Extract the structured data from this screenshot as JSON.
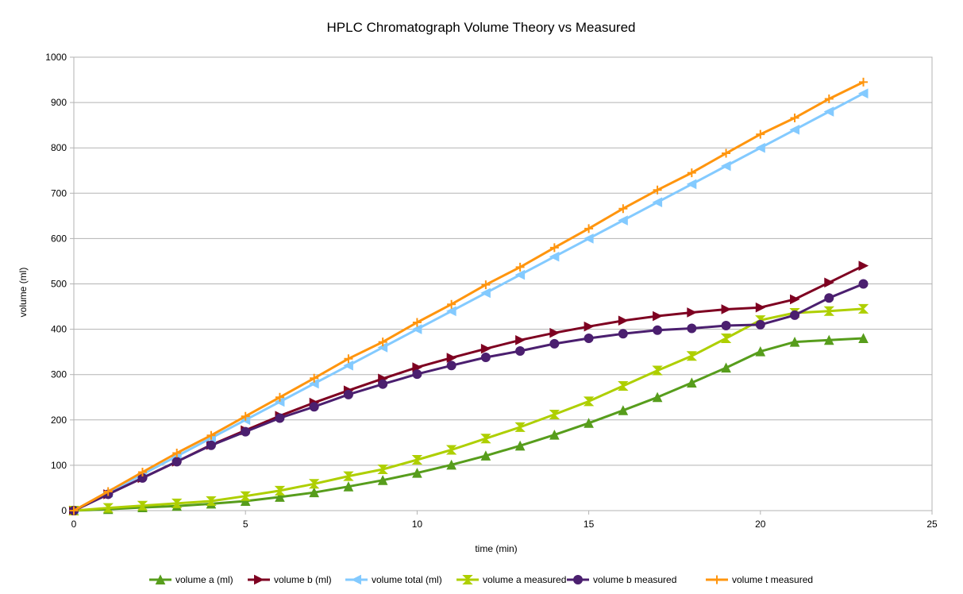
{
  "chart_data": {
    "type": "line",
    "title": "HPLC Chromatograph Volume Theory vs Measured",
    "xlabel": "time (min)",
    "ylabel": "volume (ml)",
    "xlim": [
      0,
      25
    ],
    "ylim": [
      0,
      1000
    ],
    "x_ticks": [
      0,
      5,
      10,
      15,
      20,
      25
    ],
    "y_ticks": [
      0,
      100,
      200,
      300,
      400,
      500,
      600,
      700,
      800,
      900,
      1000
    ],
    "grid": "horizontal",
    "legend_position": "bottom",
    "x": [
      0,
      1,
      2,
      3,
      4,
      5,
      6,
      7,
      8,
      9,
      10,
      11,
      12,
      13,
      14,
      15,
      16,
      17,
      18,
      19,
      20,
      21,
      22,
      23
    ],
    "series": [
      {
        "name": "volume a (ml)",
        "color": "#579d1c",
        "marker": "triangle-up",
        "values": [
          0,
          3,
          7,
          10,
          15,
          21,
          30,
          40,
          53,
          67,
          83,
          101,
          121,
          143,
          167,
          193,
          221,
          250,
          282,
          315,
          351,
          372,
          376,
          380
        ]
      },
      {
        "name": "volume b (ml)",
        "color": "#7e0021",
        "marker": "triangle-right",
        "values": [
          0,
          36,
          72,
          108,
          145,
          177,
          209,
          238,
          265,
          291,
          316,
          337,
          357,
          376,
          392,
          406,
          419,
          429,
          437,
          444,
          448,
          466,
          503,
          540
        ]
      },
      {
        "name": "volume total (ml)",
        "color": "#83caff",
        "marker": "triangle-left",
        "values": [
          0,
          40,
          80,
          120,
          160,
          200,
          240,
          280,
          320,
          360,
          400,
          440,
          480,
          520,
          560,
          600,
          640,
          680,
          720,
          760,
          800,
          840,
          880,
          920
        ]
      },
      {
        "name": "volume a measured",
        "color": "#aecf00",
        "marker": "hourglass",
        "values": [
          0,
          6,
          11,
          16,
          21,
          32,
          44,
          59,
          76,
          91,
          112,
          134,
          159,
          184,
          212,
          241,
          275,
          309,
          341,
          380,
          420,
          436,
          440,
          445
        ]
      },
      {
        "name": "volume b measured",
        "color": "#4b1f6f",
        "marker": "circle",
        "values": [
          0,
          36,
          72,
          108,
          144,
          174,
          204,
          229,
          256,
          279,
          301,
          320,
          338,
          352,
          368,
          380,
          390,
          398,
          402,
          408,
          410,
          431,
          469,
          500
        ]
      },
      {
        "name": "volume t measured",
        "color": "#ff950e",
        "marker": "plus",
        "values": [
          0,
          42,
          85,
          127,
          166,
          208,
          250,
          292,
          335,
          372,
          415,
          455,
          498,
          537,
          580,
          622,
          666,
          707,
          745,
          788,
          830,
          866,
          908,
          945
        ]
      }
    ]
  }
}
